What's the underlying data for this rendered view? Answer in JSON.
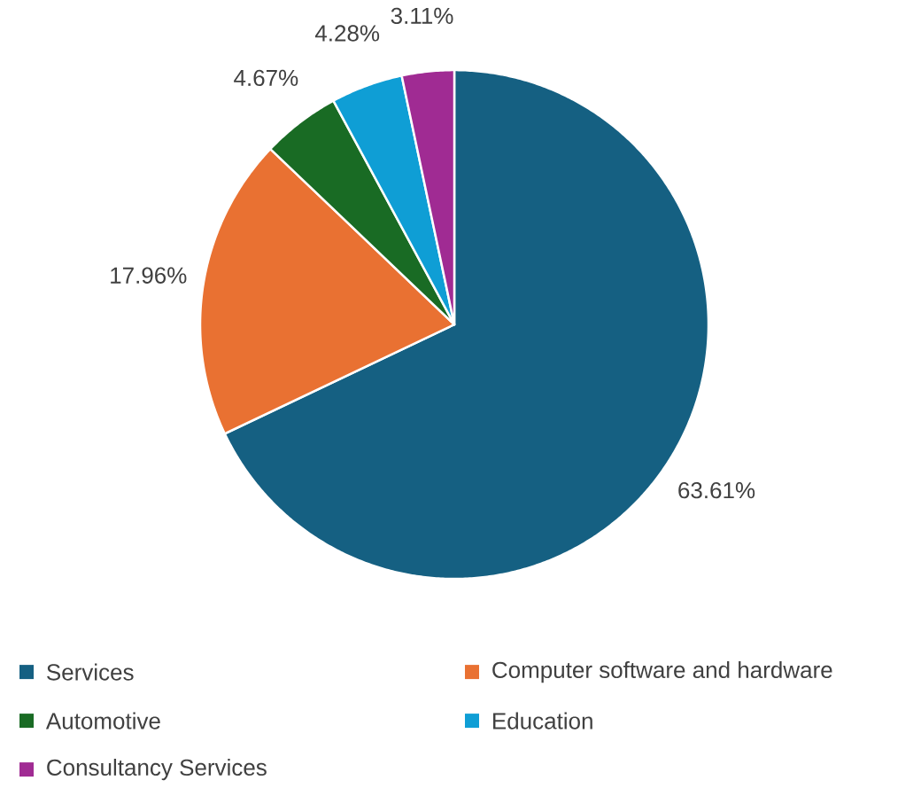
{
  "chart_data": {
    "type": "pie",
    "categories": [
      "Services",
      "Computer software and hardware",
      "Automotive",
      "Education",
      "Consultancy Services"
    ],
    "values": [
      63.61,
      17.96,
      4.67,
      4.28,
      3.11
    ],
    "colors": [
      "#156082",
      "#e97132",
      "#196b24",
      "#0f9ed5",
      "#a02b93"
    ],
    "value_labels": [
      "63.61%",
      "17.96%",
      "4.67%",
      "4.28%",
      "3.11%"
    ],
    "legend": "bottom"
  }
}
